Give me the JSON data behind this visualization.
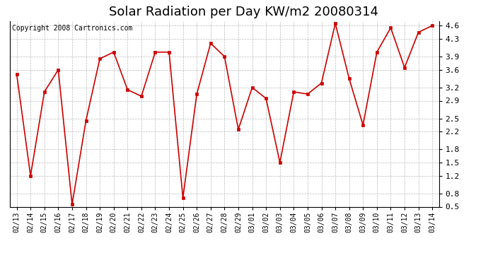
{
  "title": "Solar Radiation per Day KW/m2 20080314",
  "copyright": "Copyright 2008 Cartronics.com",
  "dates": [
    "02/13",
    "02/14",
    "02/15",
    "02/16",
    "02/17",
    "02/18",
    "02/19",
    "02/20",
    "02/21",
    "02/22",
    "02/23",
    "02/24",
    "02/25",
    "02/26",
    "02/27",
    "02/28",
    "02/29",
    "03/01",
    "03/02",
    "03/03",
    "03/04",
    "03/05",
    "03/06",
    "03/07",
    "03/08",
    "03/09",
    "03/10",
    "03/11",
    "03/12",
    "03/13",
    "03/14"
  ],
  "values": [
    3.5,
    1.2,
    3.1,
    3.6,
    0.55,
    2.45,
    3.85,
    4.0,
    3.15,
    3.0,
    4.0,
    4.0,
    0.7,
    3.05,
    4.2,
    3.9,
    2.25,
    3.2,
    2.95,
    1.5,
    3.1,
    3.05,
    3.3,
    4.65,
    3.4,
    2.35,
    4.0,
    4.55,
    3.65,
    4.45,
    4.6
  ],
  "line_color": "#cc0000",
  "marker": "s",
  "markersize": 3,
  "bg_color": "#ffffff",
  "grid_color": "#bbbbbb",
  "ylim": [
    0.5,
    4.7
  ],
  "yticks": [
    0.5,
    0.8,
    1.2,
    1.5,
    1.8,
    2.2,
    2.5,
    2.9,
    3.2,
    3.6,
    3.9,
    4.3,
    4.6
  ],
  "title_fontsize": 13,
  "copyright_fontsize": 7,
  "tick_fontsize": 7,
  "ytick_fontsize": 8
}
